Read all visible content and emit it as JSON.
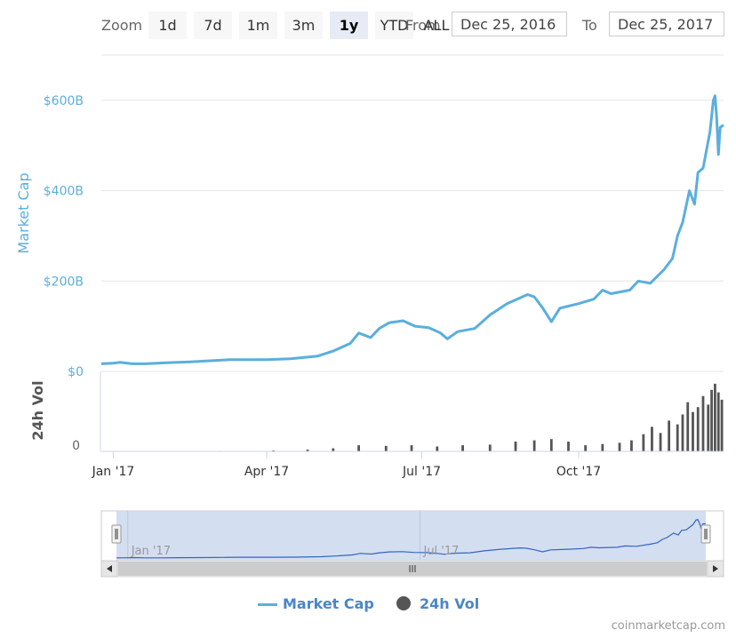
{
  "toolbar": {
    "zoom_label": "Zoom",
    "buttons": [
      "1d",
      "7d",
      "1m",
      "3m",
      "1y",
      "YTD",
      "ALL"
    ],
    "active": "1y",
    "from_label": "From",
    "to_label": "To",
    "from_value": "Dec 25, 2016",
    "to_value": "Dec 25, 2017"
  },
  "chart_data": {
    "type": "line",
    "title": "",
    "xlabel": "",
    "ylabel": "Market Cap",
    "ylim": [
      0,
      700
    ],
    "yticks": [
      "$0",
      "$200B",
      "$400B",
      "$600B"
    ],
    "ytick_values": [
      0,
      200,
      400,
      600
    ],
    "xticks": [
      "Jan '17",
      "Apr '17",
      "Jul '17",
      "Oct '17"
    ],
    "xtick_dates": [
      "2017-01-01",
      "2017-04-01",
      "2017-07-01",
      "2017-10-01"
    ],
    "xlim": [
      "2016-12-25",
      "2017-12-25"
    ],
    "grid": true,
    "legend_position": "bottom-center",
    "series": [
      {
        "name": "Market Cap",
        "color": "#5aafdc",
        "x": [
          "2016-12-25",
          "2017-01-01",
          "2017-01-05",
          "2017-01-12",
          "2017-01-20",
          "2017-02-01",
          "2017-02-15",
          "2017-03-01",
          "2017-03-10",
          "2017-03-20",
          "2017-04-01",
          "2017-04-15",
          "2017-05-01",
          "2017-05-10",
          "2017-05-20",
          "2017-05-25",
          "2017-06-01",
          "2017-06-06",
          "2017-06-12",
          "2017-06-20",
          "2017-06-27",
          "2017-07-05",
          "2017-07-12",
          "2017-07-16",
          "2017-07-22",
          "2017-08-01",
          "2017-08-10",
          "2017-08-20",
          "2017-09-01",
          "2017-09-05",
          "2017-09-10",
          "2017-09-15",
          "2017-09-20",
          "2017-10-01",
          "2017-10-10",
          "2017-10-15",
          "2017-10-20",
          "2017-10-31",
          "2017-11-05",
          "2017-11-12",
          "2017-11-20",
          "2017-11-25",
          "2017-11-28",
          "2017-12-01",
          "2017-12-05",
          "2017-12-08",
          "2017-12-10",
          "2017-12-13",
          "2017-12-17",
          "2017-12-19",
          "2017-12-20",
          "2017-12-21",
          "2017-12-22",
          "2017-12-23",
          "2017-12-25"
        ],
        "values": [
          17,
          18,
          20,
          17,
          17,
          19,
          21,
          24,
          26,
          26,
          26,
          28,
          34,
          45,
          62,
          85,
          75,
          95,
          108,
          112,
          100,
          97,
          85,
          72,
          88,
          95,
          125,
          150,
          170,
          165,
          140,
          110,
          140,
          150,
          160,
          180,
          172,
          180,
          200,
          195,
          225,
          250,
          300,
          330,
          400,
          370,
          440,
          450,
          530,
          600,
          610,
          560,
          480,
          540,
          545
        ]
      },
      {
        "name": "24h Vol",
        "color": "#555555"
      }
    ],
    "volume": {
      "ylabel": "24h Vol",
      "ytick": "0",
      "units": "billions USD",
      "ymax": 65,
      "x": [
        "2017-01-05",
        "2017-02-05",
        "2017-03-05",
        "2017-04-05",
        "2017-04-25",
        "2017-05-10",
        "2017-05-25",
        "2017-06-10",
        "2017-06-25",
        "2017-07-10",
        "2017-07-25",
        "2017-08-10",
        "2017-08-25",
        "2017-09-05",
        "2017-09-15",
        "2017-09-25",
        "2017-10-05",
        "2017-10-15",
        "2017-10-25",
        "2017-11-01",
        "2017-11-08",
        "2017-11-13",
        "2017-11-18",
        "2017-11-23",
        "2017-11-28",
        "2017-12-01",
        "2017-12-04",
        "2017-12-07",
        "2017-12-10",
        "2017-12-13",
        "2017-12-16",
        "2017-12-18",
        "2017-12-20",
        "2017-12-22",
        "2017-12-24"
      ],
      "values": [
        0.3,
        0.3,
        0.4,
        0.8,
        1.5,
        2.5,
        5,
        4.5,
        5,
        4,
        5,
        5.5,
        8,
        9,
        10,
        8,
        5,
        6,
        7,
        9,
        14,
        20,
        15,
        25,
        22,
        30,
        40,
        32,
        36,
        45,
        38,
        50,
        55,
        48,
        42
      ]
    },
    "navigator": {
      "labels": [
        "Jan '17",
        "Jul '17"
      ],
      "label_dates": [
        "2017-01-01",
        "2017-07-01"
      ]
    }
  },
  "legend": {
    "items": [
      {
        "label": "Market Cap",
        "color": "#5aafdc"
      },
      {
        "label": "24h Vol",
        "color": "#555555"
      }
    ]
  },
  "credits": "coinmarketcap.com"
}
